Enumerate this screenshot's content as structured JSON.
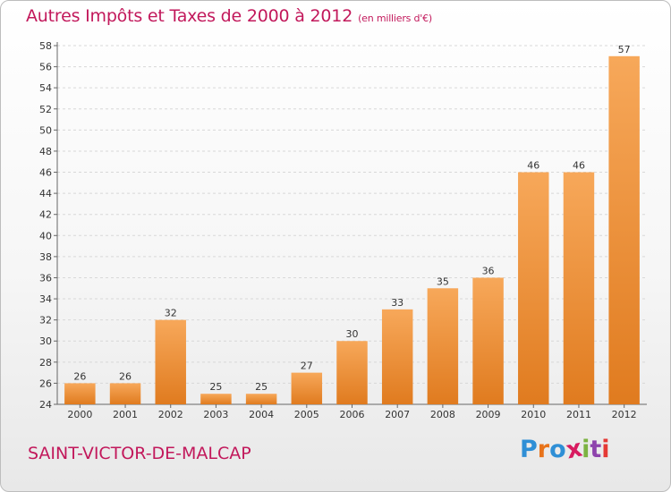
{
  "header": {
    "title": "Autres Impôts et Taxes de 2000 à 2012",
    "subtitle": "(en milliers d'€)"
  },
  "footer": {
    "commune": "SAINT-VICTOR-DE-MALCAP",
    "logo_text": "Proxiti"
  },
  "colors": {
    "title": "#c2185b",
    "bar_light": "#f7a85a",
    "bar_dark": "#e07b1f",
    "grid": "#d8d8d8"
  },
  "chart_data": {
    "type": "bar",
    "title": "Autres Impôts et Taxes de 2000 à 2012",
    "subtitle": "(en milliers d'€)",
    "categories": [
      "2000",
      "2001",
      "2002",
      "2003",
      "2004",
      "2005",
      "2006",
      "2007",
      "2008",
      "2009",
      "2010",
      "2011",
      "2012"
    ],
    "values": [
      26,
      26,
      32,
      25,
      25,
      27,
      30,
      33,
      35,
      36,
      46,
      46,
      57
    ],
    "ylim": [
      24,
      58
    ],
    "yticks": [
      24,
      26,
      28,
      30,
      32,
      34,
      36,
      38,
      40,
      42,
      44,
      46,
      48,
      50,
      52,
      54,
      56,
      58
    ],
    "grid": "horizontal dashed",
    "data_labels": true
  }
}
